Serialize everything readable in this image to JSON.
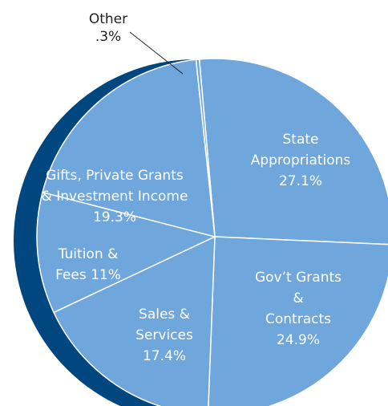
{
  "chart_data": {
    "type": "pie",
    "categories": [
      "State\nAppropriations",
      "Gov’t Grants &\nContracts",
      "Sales &\nServices",
      "Tuition &\nFees",
      "Gifts, Private Grants\n& Investment Income",
      "Other"
    ],
    "values": [
      27.1,
      24.9,
      17.4,
      11,
      19.3,
      0.3
    ],
    "value_labels": [
      "27.1%",
      "24.9%",
      "17.4%",
      "11%",
      "19.3%",
      ".3%"
    ],
    "color": "#6fa6db",
    "shadow_color": "#00467f"
  }
}
